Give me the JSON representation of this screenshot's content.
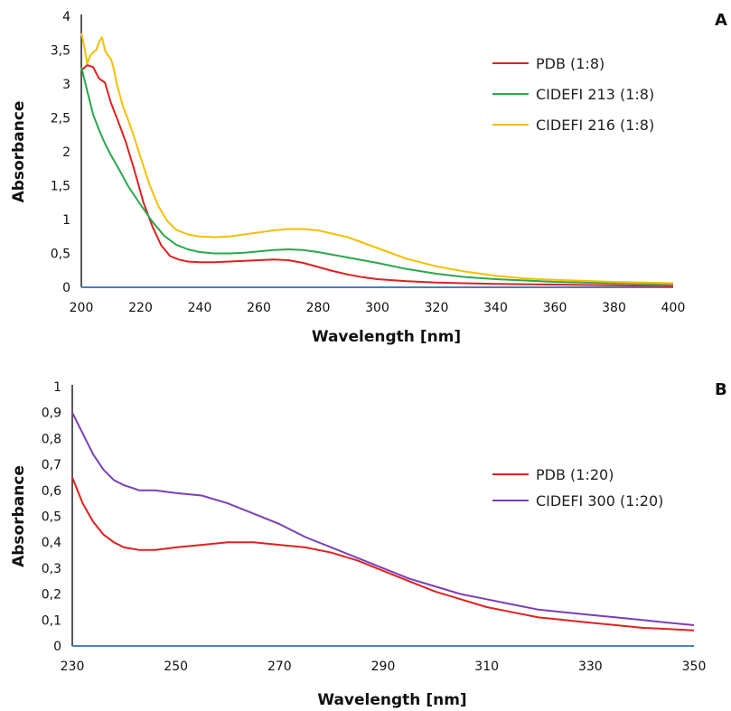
{
  "chart_data": [
    {
      "type": "line",
      "panel_label": "A",
      "xlabel": "Wavelength [nm]",
      "ylabel": "Absorbance",
      "xlim": [
        200,
        400
      ],
      "ylim": [
        0,
        4
      ],
      "x_ticks": [
        "200",
        "220",
        "240",
        "260",
        "280",
        "300",
        "320",
        "340",
        "360",
        "380",
        "400"
      ],
      "y_ticks": [
        "0",
        "0,5",
        "1",
        "1,5",
        "2",
        "2,5",
        "3",
        "3,5",
        "4"
      ],
      "legend_position": "top-right",
      "baseline_color": "#4a7fc0",
      "series": [
        {
          "name": "PDB (1:8)",
          "color": "#e02020",
          "points": [
            [
              200,
              3.2
            ],
            [
              202,
              3.28
            ],
            [
              204,
              3.25
            ],
            [
              206,
              3.08
            ],
            [
              208,
              3.02
            ],
            [
              210,
              2.72
            ],
            [
              212,
              2.5
            ],
            [
              215,
              2.15
            ],
            [
              218,
              1.72
            ],
            [
              221,
              1.25
            ],
            [
              224,
              0.9
            ],
            [
              227,
              0.62
            ],
            [
              230,
              0.46
            ],
            [
              233,
              0.41
            ],
            [
              236,
              0.38
            ],
            [
              240,
              0.37
            ],
            [
              245,
              0.37
            ],
            [
              250,
              0.38
            ],
            [
              255,
              0.39
            ],
            [
              260,
              0.4
            ],
            [
              265,
              0.41
            ],
            [
              270,
              0.4
            ],
            [
              275,
              0.36
            ],
            [
              280,
              0.3
            ],
            [
              285,
              0.24
            ],
            [
              290,
              0.19
            ],
            [
              295,
              0.15
            ],
            [
              300,
              0.12
            ],
            [
              310,
              0.09
            ],
            [
              320,
              0.07
            ],
            [
              340,
              0.05
            ],
            [
              360,
              0.04
            ],
            [
              380,
              0.03
            ],
            [
              400,
              0.02
            ]
          ]
        },
        {
          "name": "CIDEFI 213 (1:8)",
          "color": "#2aa84a",
          "points": [
            [
              200,
              3.25
            ],
            [
              202,
              2.9
            ],
            [
              204,
              2.55
            ],
            [
              206,
              2.32
            ],
            [
              208,
              2.12
            ],
            [
              210,
              1.95
            ],
            [
              213,
              1.72
            ],
            [
              216,
              1.48
            ],
            [
              220,
              1.22
            ],
            [
              224,
              0.97
            ],
            [
              228,
              0.76
            ],
            [
              232,
              0.63
            ],
            [
              236,
              0.56
            ],
            [
              240,
              0.52
            ],
            [
              245,
              0.5
            ],
            [
              250,
              0.5
            ],
            [
              255,
              0.51
            ],
            [
              260,
              0.53
            ],
            [
              265,
              0.55
            ],
            [
              270,
              0.56
            ],
            [
              275,
              0.55
            ],
            [
              280,
              0.52
            ],
            [
              290,
              0.44
            ],
            [
              300,
              0.36
            ],
            [
              310,
              0.27
            ],
            [
              320,
              0.2
            ],
            [
              330,
              0.15
            ],
            [
              340,
              0.12
            ],
            [
              350,
              0.1
            ],
            [
              360,
              0.08
            ],
            [
              380,
              0.06
            ],
            [
              400,
              0.05
            ]
          ]
        },
        {
          "name": "CIDEFI 216 (1:8)",
          "color": "#f5c000",
          "points": [
            [
              200,
              3.75
            ],
            [
              201,
              3.55
            ],
            [
              202,
              3.3
            ],
            [
              203,
              3.42
            ],
            [
              204,
              3.47
            ],
            [
              205,
              3.5
            ],
            [
              206,
              3.62
            ],
            [
              207,
              3.69
            ],
            [
              208,
              3.5
            ],
            [
              209,
              3.42
            ],
            [
              210,
              3.37
            ],
            [
              211,
              3.22
            ],
            [
              212,
              3.0
            ],
            [
              214,
              2.68
            ],
            [
              216,
              2.45
            ],
            [
              218,
              2.2
            ],
            [
              220,
              1.92
            ],
            [
              223,
              1.52
            ],
            [
              226,
              1.2
            ],
            [
              229,
              0.98
            ],
            [
              232,
              0.85
            ],
            [
              236,
              0.78
            ],
            [
              240,
              0.75
            ],
            [
              245,
              0.74
            ],
            [
              250,
              0.75
            ],
            [
              255,
              0.78
            ],
            [
              260,
              0.81
            ],
            [
              265,
              0.84
            ],
            [
              270,
              0.86
            ],
            [
              275,
              0.86
            ],
            [
              280,
              0.84
            ],
            [
              290,
              0.74
            ],
            [
              300,
              0.58
            ],
            [
              310,
              0.42
            ],
            [
              320,
              0.31
            ],
            [
              330,
              0.23
            ],
            [
              340,
              0.17
            ],
            [
              350,
              0.13
            ],
            [
              360,
              0.11
            ],
            [
              380,
              0.08
            ],
            [
              400,
              0.06
            ]
          ]
        }
      ]
    },
    {
      "type": "line",
      "panel_label": "B",
      "xlabel": "Wavelength [nm]",
      "ylabel": "Absorbance",
      "xlim": [
        230,
        350
      ],
      "ylim": [
        0,
        1
      ],
      "x_ticks": [
        "230",
        "250",
        "270",
        "290",
        "310",
        "330",
        "350"
      ],
      "y_ticks": [
        "0",
        "0,1",
        "0,2",
        "0,3",
        "0,4",
        "0,5",
        "0,6",
        "0,7",
        "0,8",
        "0,9",
        "1"
      ],
      "legend_position": "right",
      "baseline_color": "#4a7fc0",
      "series": [
        {
          "name": "PDB (1:20)",
          "color": "#e02020",
          "points": [
            [
              230,
              0.65
            ],
            [
              232,
              0.55
            ],
            [
              234,
              0.48
            ],
            [
              236,
              0.43
            ],
            [
              238,
              0.4
            ],
            [
              240,
              0.38
            ],
            [
              243,
              0.37
            ],
            [
              246,
              0.37
            ],
            [
              250,
              0.38
            ],
            [
              255,
              0.39
            ],
            [
              260,
              0.4
            ],
            [
              265,
              0.4
            ],
            [
              270,
              0.39
            ],
            [
              275,
              0.38
            ],
            [
              280,
              0.36
            ],
            [
              285,
              0.33
            ],
            [
              290,
              0.29
            ],
            [
              295,
              0.25
            ],
            [
              300,
              0.21
            ],
            [
              305,
              0.18
            ],
            [
              310,
              0.15
            ],
            [
              315,
              0.13
            ],
            [
              320,
              0.11
            ],
            [
              325,
              0.1
            ],
            [
              330,
              0.09
            ],
            [
              335,
              0.08
            ],
            [
              340,
              0.07
            ],
            [
              345,
              0.065
            ],
            [
              350,
              0.06
            ]
          ]
        },
        {
          "name": "CIDEFI 300 (1:20)",
          "color": "#7b3fb5",
          "points": [
            [
              230,
              0.9
            ],
            [
              232,
              0.82
            ],
            [
              234,
              0.74
            ],
            [
              236,
              0.68
            ],
            [
              238,
              0.64
            ],
            [
              240,
              0.62
            ],
            [
              243,
              0.6
            ],
            [
              246,
              0.6
            ],
            [
              250,
              0.59
            ],
            [
              255,
              0.58
            ],
            [
              260,
              0.55
            ],
            [
              265,
              0.51
            ],
            [
              270,
              0.47
            ],
            [
              275,
              0.42
            ],
            [
              280,
              0.38
            ],
            [
              285,
              0.34
            ],
            [
              290,
              0.3
            ],
            [
              295,
              0.26
            ],
            [
              300,
              0.23
            ],
            [
              305,
              0.2
            ],
            [
              310,
              0.18
            ],
            [
              315,
              0.16
            ],
            [
              320,
              0.14
            ],
            [
              325,
              0.13
            ],
            [
              330,
              0.12
            ],
            [
              335,
              0.11
            ],
            [
              340,
              0.1
            ],
            [
              345,
              0.09
            ],
            [
              350,
              0.08
            ]
          ]
        }
      ]
    }
  ]
}
